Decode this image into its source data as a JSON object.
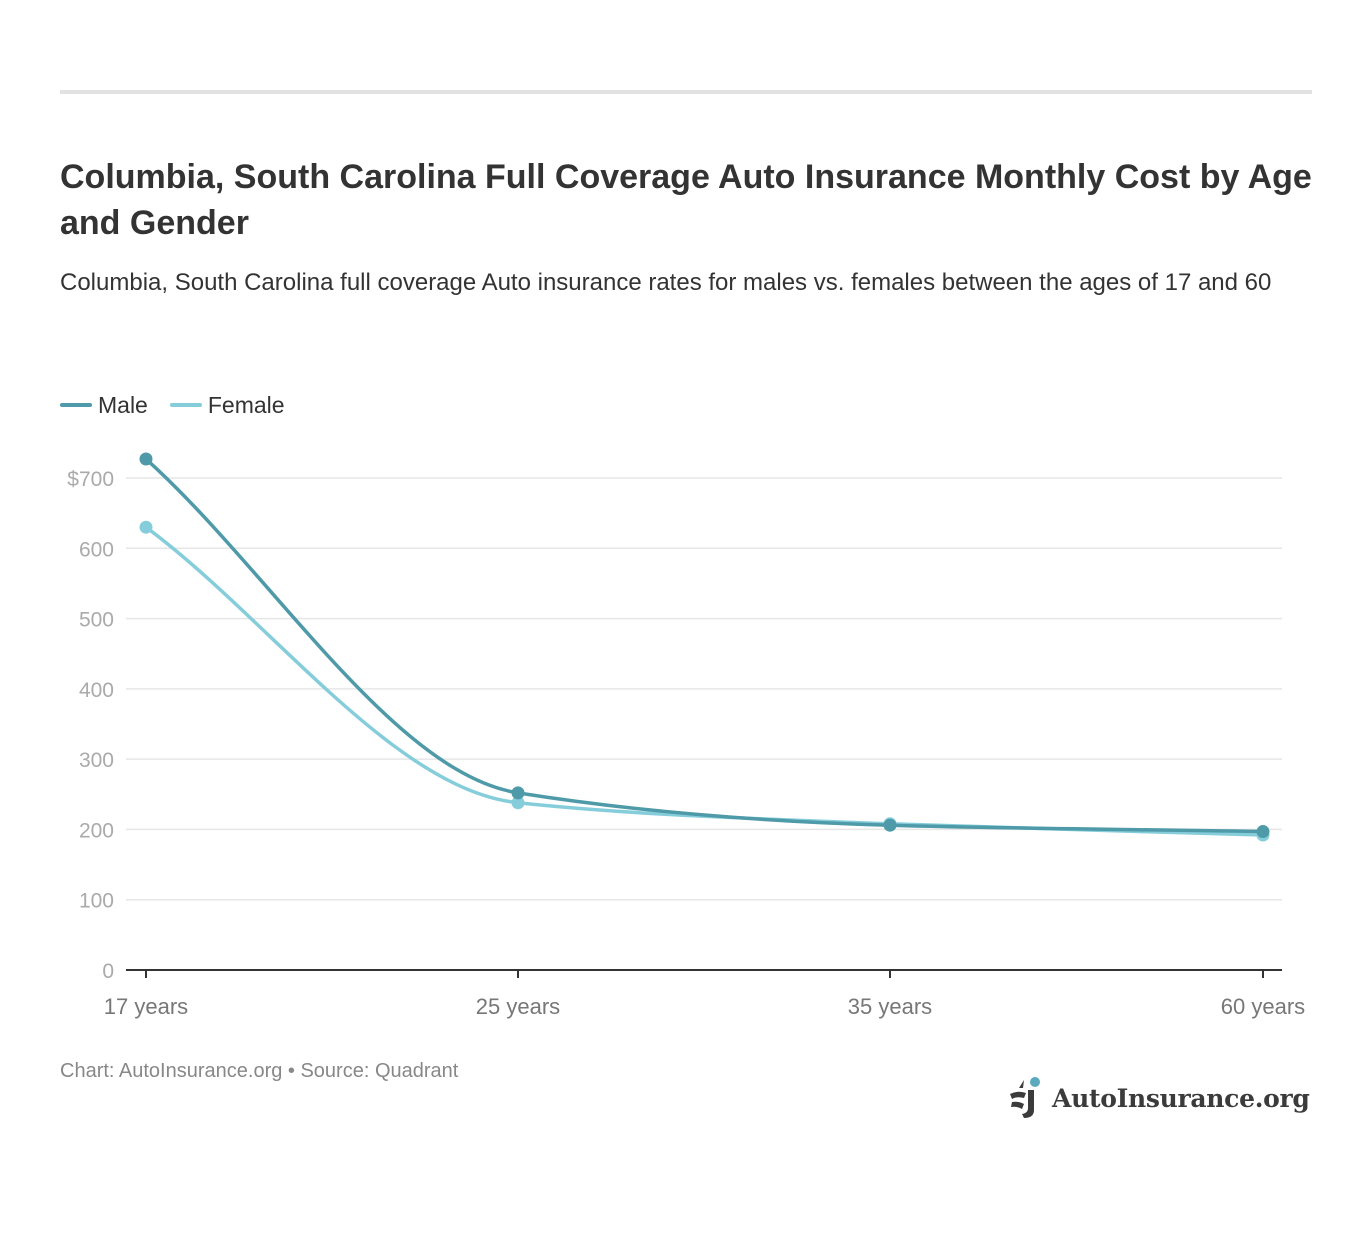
{
  "title": "Columbia, South Carolina Full Coverage Auto Insurance Monthly Cost by Age and Gender",
  "subtitle": "Columbia, South Carolina full coverage Auto insurance rates for males vs. females between the ages of 17 and 60",
  "legend": {
    "items": [
      {
        "label": "Male",
        "color": "#4e9aa8"
      },
      {
        "label": "Female",
        "color": "#86cddb"
      }
    ]
  },
  "footer": {
    "source_line": "Chart: AutoInsurance.org • Source: Quadrant"
  },
  "logo": {
    "text": "AutoInsurance.org",
    "icon": "auto-insurance-logo-icon"
  },
  "chart_data": {
    "type": "line",
    "title": "Columbia, South Carolina Full Coverage Auto Insurance Monthly Cost by Age and Gender",
    "xlabel": "",
    "ylabel": "",
    "categories": [
      "17 years",
      "25 years",
      "35 years",
      "60 years"
    ],
    "y_ticks": [
      0,
      100,
      200,
      300,
      400,
      500,
      600,
      700
    ],
    "y_tick_labels": [
      "0",
      "100",
      "200",
      "300",
      "400",
      "500",
      "600",
      "$700"
    ],
    "ylim": [
      0,
      700
    ],
    "grid": true,
    "legend_position": "top-left",
    "series": [
      {
        "name": "Male",
        "color": "#4e9aa8",
        "values": [
          727,
          252,
          206,
          197
        ]
      },
      {
        "name": "Female",
        "color": "#86cddb",
        "values": [
          630,
          238,
          208,
          192
        ]
      }
    ]
  }
}
